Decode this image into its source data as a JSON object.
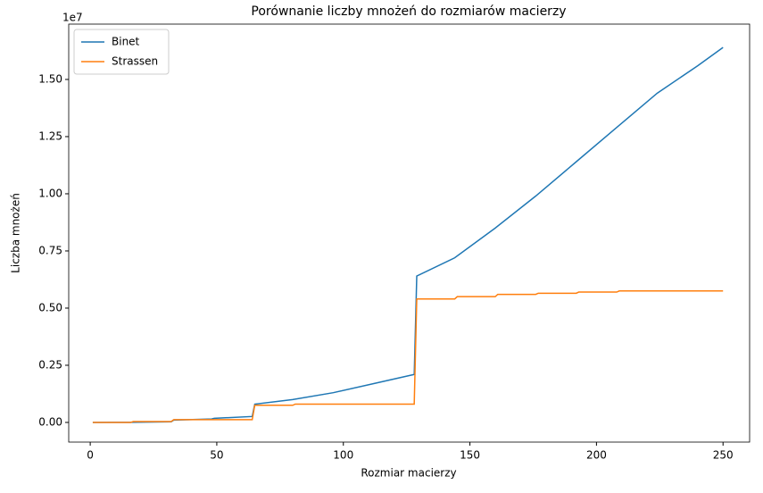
{
  "chart_data": {
    "type": "line",
    "title": "Porównanie liczby mnożeń do rozmiarów macierzy",
    "x_label": "Rozmiar macierzy",
    "y_label": "Liczba mnożeń",
    "y_offset_label": "1e7",
    "xlim": [
      -8.5,
      260.5
    ],
    "ylim": [
      -0.086,
      1.742
    ],
    "xticks": [
      0,
      50,
      100,
      150,
      200,
      250
    ],
    "yticks": [
      {
        "value": 0,
        "label": "0.00"
      },
      {
        "value": 0.25,
        "label": "0.25"
      },
      {
        "value": 0.5,
        "label": "0.50"
      },
      {
        "value": 0.75,
        "label": "0.75"
      },
      {
        "value": 1,
        "label": "1.00"
      },
      {
        "value": 1.25,
        "label": "1.25"
      },
      {
        "value": 1.5,
        "label": "1.50"
      }
    ],
    "legend": "upper-left",
    "series": [
      {
        "name": "Binet",
        "color": "#1f77b4",
        "x": [
          1,
          16,
          32,
          33,
          48,
          49,
          64,
          65,
          80,
          96,
          112,
          128,
          129,
          144,
          160,
          176,
          192,
          208,
          224,
          240,
          250
        ],
        "values": [
          0,
          0.0004,
          0.003,
          0.01,
          0.015,
          0.018,
          0.026,
          0.08,
          0.1,
          0.13,
          0.17,
          0.21,
          0.64,
          0.72,
          0.85,
          0.99,
          1.14,
          1.29,
          1.44,
          1.56,
          1.64
        ]
      },
      {
        "name": "Strassen",
        "color": "#ff7f0e",
        "x": [
          1,
          16,
          17,
          32,
          33,
          64,
          65,
          80,
          81,
          128,
          129,
          144,
          145,
          160,
          161,
          176,
          177,
          192,
          193,
          208,
          209,
          250
        ],
        "values": [
          0,
          0,
          0.004,
          0.004,
          0.012,
          0.012,
          0.075,
          0.075,
          0.08,
          0.08,
          0.54,
          0.54,
          0.55,
          0.55,
          0.56,
          0.56,
          0.565,
          0.565,
          0.57,
          0.57,
          0.575,
          0.575
        ]
      }
    ]
  }
}
